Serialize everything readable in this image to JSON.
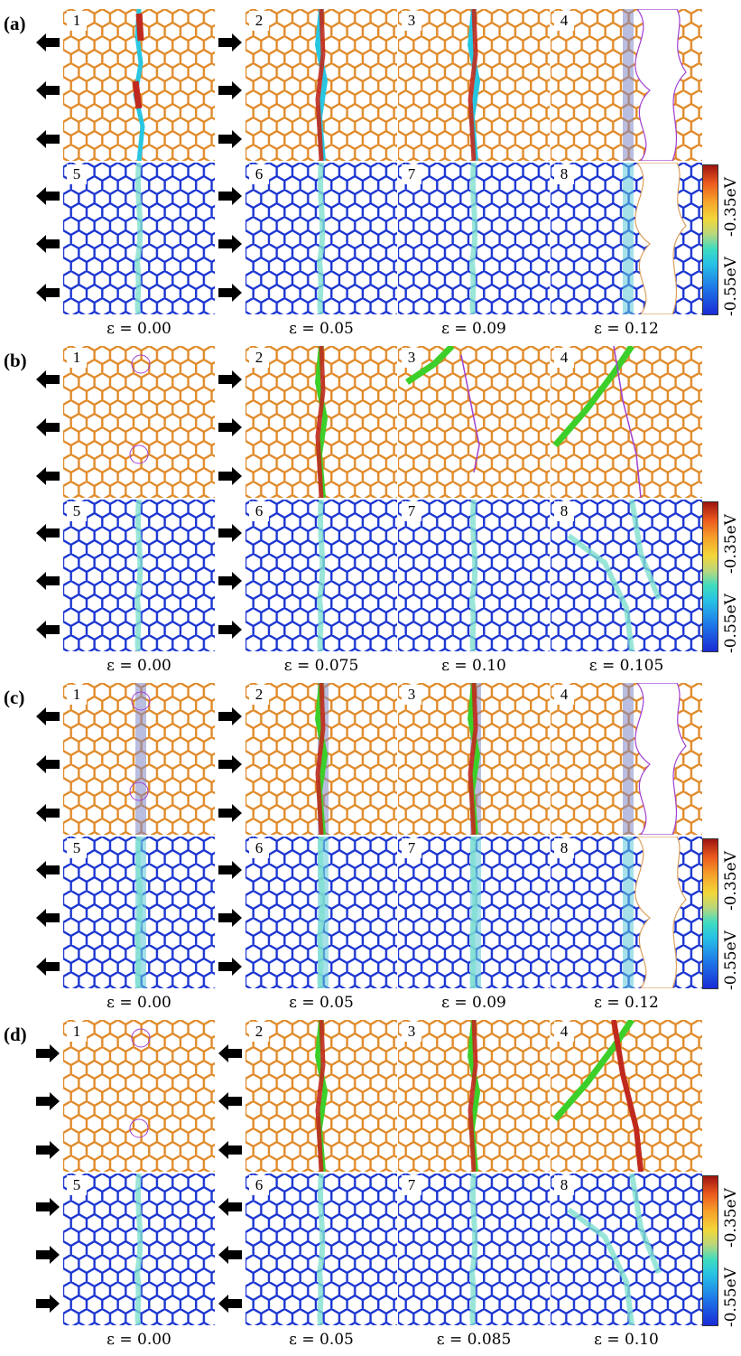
{
  "colors": {
    "mono_bond": "#e08a2a",
    "energy_bond_low": "#1b35d0",
    "energy_bond_mid": "#2a84e8",
    "crack_cyan": "#29c6e0",
    "crack_red": "#c02a1e",
    "crack_green": "#3ccf2a",
    "crack_magenta": "#a040d0"
  },
  "colorbar": {
    "top_label": "-0.35eV",
    "bottom_label": "-0.55eV"
  },
  "groups": [
    {
      "label": "(a)",
      "arrows_col1": "left",
      "arrows_col2": "right",
      "strains": [
        "ε = 0.00",
        "ε = 0.05",
        "ε = 0.09",
        "ε = 0.12"
      ],
      "panels": [
        "1",
        "2",
        "3",
        "4",
        "5",
        "6",
        "7",
        "8"
      ]
    },
    {
      "label": "(b)",
      "arrows_col1": "left",
      "arrows_col2": "right",
      "strains": [
        "ε = 0.00",
        "ε = 0.075",
        "ε = 0.10",
        "ε = 0.105"
      ],
      "panels": [
        "1",
        "2",
        "3",
        "4",
        "5",
        "6",
        "7",
        "8"
      ]
    },
    {
      "label": "(c)",
      "arrows_col1": "left",
      "arrows_col2": "right",
      "strains": [
        "ε = 0.00",
        "ε = 0.05",
        "ε = 0.09",
        "ε = 0.12"
      ],
      "panels": [
        "1",
        "2",
        "3",
        "4",
        "5",
        "6",
        "7",
        "8"
      ]
    },
    {
      "label": "(d)",
      "arrows_col1": "right",
      "arrows_col2": "left",
      "strains": [
        "ε = 0.00",
        "ε = 0.05",
        "ε = 0.085",
        "ε = 0.10"
      ],
      "panels": [
        "1",
        "2",
        "3",
        "4",
        "5",
        "6",
        "7",
        "8"
      ]
    }
  ]
}
